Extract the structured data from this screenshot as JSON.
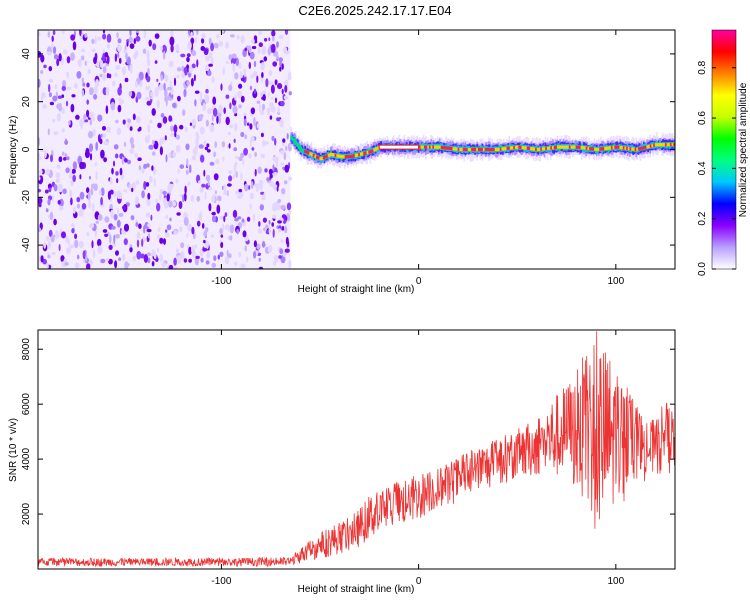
{
  "page": {
    "title": "C2E6.2025.242.17.17.E04"
  },
  "chart_data": [
    {
      "type": "heatmap",
      "title": "",
      "xlabel": "Height of straight line (km)",
      "ylabel": "Frequency (Hz)",
      "xlim": [
        -193,
        130
      ],
      "ylim": [
        -50,
        50
      ],
      "xticks": [
        -100,
        0,
        100
      ],
      "yticks": [
        -40,
        -20,
        0,
        20,
        40
      ],
      "grid": false,
      "noise_region_x": [
        -193,
        -65
      ],
      "signal_track": {
        "x": [
          -65,
          -60,
          -55,
          -50,
          -45,
          -40,
          -35,
          -30,
          -25,
          -20,
          -15,
          -10,
          -5,
          0,
          10,
          20,
          30,
          40,
          50,
          60,
          70,
          80,
          90,
          100,
          110,
          120,
          130
        ],
        "y": [
          5,
          0,
          -2,
          -4,
          -2,
          -3,
          -3,
          -2,
          -1,
          1,
          1,
          1,
          1,
          1,
          1,
          0,
          0,
          0,
          1,
          0,
          1,
          1,
          0,
          1,
          0,
          2,
          2
        ]
      },
      "colorbar": {
        "label": "Normalized spectral amplitude",
        "range": [
          0,
          0.95
        ],
        "ticks": [
          "0.0",
          "0.2",
          "0.4",
          "0.6",
          "0.8"
        ],
        "colors": [
          "#ffffff",
          "#b9a0ff",
          "#8a00ff",
          "#0000ff",
          "#00c8ff",
          "#00ff80",
          "#00ff00",
          "#c8ff00",
          "#ffff00",
          "#ff8000",
          "#ff0000",
          "#ff00a0"
        ]
      }
    },
    {
      "type": "line",
      "title": "",
      "xlabel": "Height of straight line (km)",
      "ylabel": "SNR (10 * v/v)",
      "xlim": [
        -193,
        130
      ],
      "ylim": [
        0,
        8700
      ],
      "xticks": [
        -100,
        0,
        100
      ],
      "yticks": [
        2000,
        4000,
        6000,
        8000
      ],
      "grid": false,
      "series": [
        {
          "color": "#ee3333",
          "envelope": {
            "x": [
              -193,
              -160,
              -130,
              -100,
              -80,
              -65,
              -58,
              -52,
              -45,
              -40,
              -35,
              -30,
              -25,
              -20,
              -15,
              -10,
              -5,
              0,
              5,
              10,
              15,
              20,
              25,
              30,
              35,
              40,
              45,
              50,
              55,
              60,
              65,
              70,
              75,
              80,
              85,
              90,
              95,
              100,
              105,
              110,
              115,
              120,
              125,
              130
            ],
            "low": [
              100,
              100,
              100,
              100,
              100,
              100,
              250,
              350,
              450,
              550,
              650,
              800,
              1100,
              1300,
              1400,
              1500,
              1700,
              1800,
              2000,
              2200,
              2300,
              2400,
              2600,
              2800,
              2900,
              3000,
              3100,
              3200,
              3300,
              3400,
              3300,
              3300,
              3200,
              2800,
              2000,
              1200,
              1500,
              2000,
              2500,
              3000,
              3200,
              3300,
              3400,
              3500
            ],
            "high": [
              400,
              400,
              400,
              400,
              420,
              450,
              900,
              1200,
              1600,
              1700,
              1900,
              2200,
              2700,
              2900,
              3100,
              3200,
              3300,
              3500,
              3600,
              3700,
              3900,
              4100,
              4300,
              4500,
              4600,
              4800,
              4900,
              5100,
              5300,
              5600,
              6100,
              6400,
              6800,
              7200,
              8000,
              8700,
              8100,
              7600,
              6900,
              6000,
              5600,
              5400,
              6200,
              5800
            ]
          }
        }
      ]
    }
  ]
}
